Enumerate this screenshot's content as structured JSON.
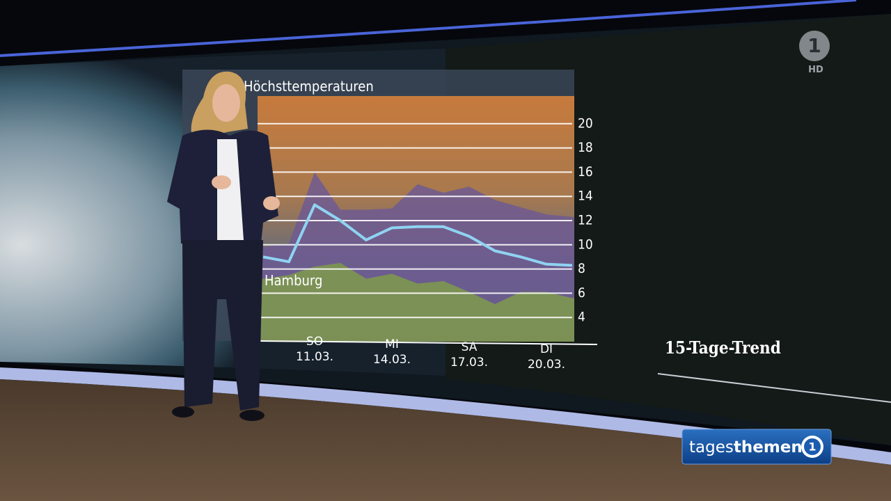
{
  "chart_data": {
    "type": "line",
    "title": "Höchsttemperaturen",
    "categories": [
      null,
      null,
      "SO\n11.03.",
      null,
      null,
      "MI\n14.03.",
      null,
      null,
      "SA\n17.03.",
      null,
      null,
      "DI\n20.03.",
      null
    ],
    "series": [
      {
        "name": "Hamburg",
        "color": "#8fd3f2",
        "values": [
          9.0,
          8.6,
          13.3,
          12.0,
          10.4,
          11.4,
          11.5,
          11.5,
          10.7,
          9.5,
          9.0,
          8.4,
          8.3
        ]
      }
    ],
    "bands": [
      {
        "color": "#6e5a92",
        "values": [
          9.8,
          10.1,
          16.0,
          12.9,
          12.9,
          13.0,
          15.0,
          14.3,
          14.8,
          13.7,
          13.1,
          12.5,
          12.3
        ]
      },
      {
        "color": "#7f9a4c",
        "values": [
          7.2,
          7.5,
          8.2,
          8.5,
          7.2,
          7.6,
          6.8,
          7.0,
          6.1,
          5.1,
          6.1,
          6.1,
          5.6
        ]
      }
    ],
    "ylim": [
      2,
      22
    ],
    "yticks": [
      4,
      6,
      8,
      10,
      12,
      14,
      16,
      18,
      20
    ],
    "grid": true
  },
  "panel": {
    "caption": "15-Tage-Trend"
  },
  "broadcast": {
    "channel_logo": "1",
    "quality": "HD",
    "show_light": "tages",
    "show_bold": "themen",
    "show_logo": "1"
  }
}
